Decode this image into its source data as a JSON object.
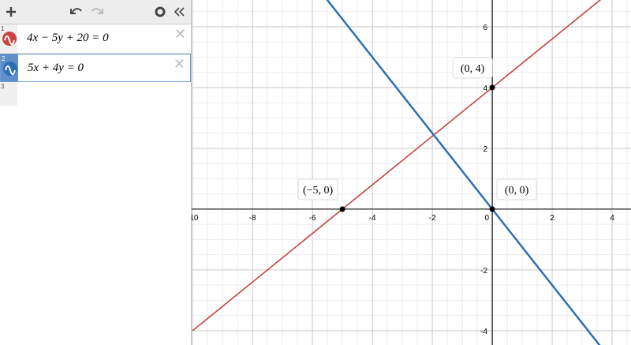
{
  "expressions": [
    {
      "number": 1,
      "latex": "4x − 5y + 20 = 0",
      "color": "#c74440"
    },
    {
      "number": 2,
      "latex": "5x + 4y = 0",
      "color": "#2d70b3"
    },
    {
      "number": 3
    }
  ],
  "graph": {
    "xlim": [
      -10.03,
      4.63
    ],
    "ylim": [
      -4.47,
      6.88
    ],
    "xticks": [
      -10,
      -8,
      -6,
      -4,
      -2,
      0,
      2,
      4
    ],
    "yticks": [
      -4,
      -2,
      2,
      4,
      6
    ],
    "curves": [
      {
        "color": "#c74440",
        "x": [
          -10,
          3.75
        ],
        "y": [
          -4,
          7
        ]
      },
      {
        "color": "#2d70b3",
        "x": [
          -5.6,
          3.6
        ],
        "y": [
          7,
          -4.5
        ]
      }
    ],
    "points": [
      {
        "x": 0,
        "y": 4,
        "label": "(0, 4)"
      },
      {
        "x": -5,
        "y": 0,
        "label": "(−5, 0)"
      },
      {
        "x": 0,
        "y": 0,
        "label": "(0, 0)"
      }
    ]
  }
}
